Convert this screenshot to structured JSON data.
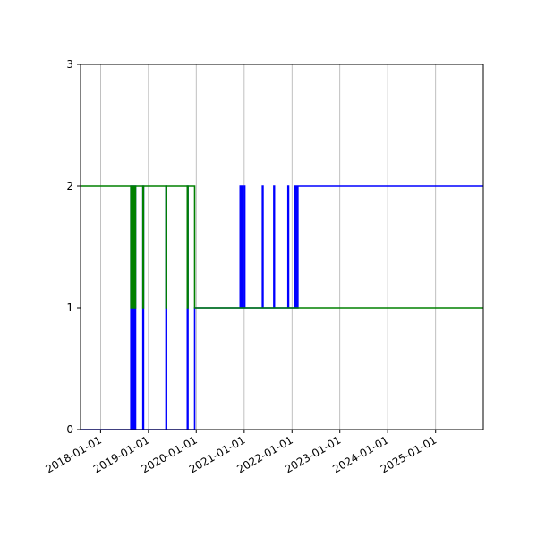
{
  "chart_data": {
    "type": "line",
    "title": "",
    "xlabel": "",
    "ylabel": "",
    "x_axis": {
      "kind": "date",
      "range": [
        "2017-08-01",
        "2025-12-31"
      ],
      "ticks": [
        "2018-01-01",
        "2019-01-01",
        "2020-01-01",
        "2021-01-01",
        "2022-01-01",
        "2023-01-01",
        "2024-01-01",
        "2025-01-01"
      ]
    },
    "y_axis": {
      "range": [
        0,
        3
      ],
      "ticks": [
        0,
        1,
        2,
        3
      ]
    },
    "grid": "x-only",
    "legend": "none",
    "series": [
      {
        "color": "#0000ff",
        "points": [
          [
            "2017-08-01",
            0
          ],
          [
            "2018-08-20",
            0
          ],
          [
            "2018-08-20",
            2
          ],
          [
            "2018-08-25",
            2
          ],
          [
            "2018-08-25",
            0
          ],
          [
            "2018-08-29",
            0
          ],
          [
            "2018-08-29",
            2
          ],
          [
            "2018-09-05",
            2
          ],
          [
            "2018-09-05",
            0
          ],
          [
            "2018-09-10",
            0
          ],
          [
            "2018-09-10",
            2
          ],
          [
            "2018-09-15",
            2
          ],
          [
            "2018-09-15",
            0
          ],
          [
            "2018-09-19",
            0
          ],
          [
            "2018-09-19",
            2
          ],
          [
            "2018-09-25",
            2
          ],
          [
            "2018-09-25",
            0
          ],
          [
            "2018-11-20",
            0
          ],
          [
            "2018-11-20",
            2
          ],
          [
            "2018-11-25",
            2
          ],
          [
            "2018-11-25",
            0
          ],
          [
            "2019-05-15",
            0
          ],
          [
            "2019-05-15",
            2
          ],
          [
            "2019-05-20",
            2
          ],
          [
            "2019-05-20",
            0
          ],
          [
            "2019-10-25",
            0
          ],
          [
            "2019-10-25",
            2
          ],
          [
            "2019-10-30",
            2
          ],
          [
            "2019-10-30",
            0
          ],
          [
            "2019-12-20",
            0
          ],
          [
            "2019-12-20",
            1
          ],
          [
            "2020-12-01",
            1
          ],
          [
            "2020-12-01",
            2
          ],
          [
            "2020-12-06",
            2
          ],
          [
            "2020-12-06",
            1
          ],
          [
            "2020-12-16",
            1
          ],
          [
            "2020-12-16",
            2
          ],
          [
            "2020-12-20",
            2
          ],
          [
            "2020-12-20",
            1
          ],
          [
            "2021-01-01",
            1
          ],
          [
            "2021-01-01",
            2
          ],
          [
            "2021-01-06",
            2
          ],
          [
            "2021-01-06",
            1
          ],
          [
            "2021-05-20",
            1
          ],
          [
            "2021-05-20",
            2
          ],
          [
            "2021-05-25",
            2
          ],
          [
            "2021-05-25",
            1
          ],
          [
            "2021-08-15",
            1
          ],
          [
            "2021-08-15",
            2
          ],
          [
            "2021-08-20",
            2
          ],
          [
            "2021-08-20",
            1
          ],
          [
            "2021-12-01",
            1
          ],
          [
            "2021-12-01",
            2
          ],
          [
            "2021-12-06",
            2
          ],
          [
            "2021-12-06",
            1
          ],
          [
            "2022-01-25",
            1
          ],
          [
            "2022-01-25",
            2
          ],
          [
            "2022-01-30",
            2
          ],
          [
            "2022-01-30",
            1
          ],
          [
            "2022-02-05",
            1
          ],
          [
            "2022-02-05",
            2
          ],
          [
            "2022-02-10",
            2
          ],
          [
            "2022-02-10",
            1
          ],
          [
            "2022-02-15",
            1
          ],
          [
            "2022-02-15",
            2
          ],
          [
            "2025-12-31",
            2
          ]
        ]
      },
      {
        "color": "#008000",
        "points": [
          [
            "2017-08-01",
            2
          ],
          [
            "2018-08-20",
            2
          ],
          [
            "2018-08-20",
            1
          ],
          [
            "2018-08-25",
            1
          ],
          [
            "2018-08-25",
            2
          ],
          [
            "2018-08-29",
            2
          ],
          [
            "2018-08-29",
            1
          ],
          [
            "2018-09-05",
            1
          ],
          [
            "2018-09-05",
            2
          ],
          [
            "2018-09-10",
            2
          ],
          [
            "2018-09-10",
            1
          ],
          [
            "2018-09-15",
            1
          ],
          [
            "2018-09-15",
            2
          ],
          [
            "2018-09-19",
            2
          ],
          [
            "2018-09-19",
            1
          ],
          [
            "2018-09-25",
            1
          ],
          [
            "2018-09-25",
            2
          ],
          [
            "2018-11-20",
            2
          ],
          [
            "2018-11-20",
            1
          ],
          [
            "2018-11-25",
            1
          ],
          [
            "2018-11-25",
            2
          ],
          [
            "2019-05-15",
            2
          ],
          [
            "2019-05-15",
            1
          ],
          [
            "2019-05-20",
            1
          ],
          [
            "2019-05-20",
            2
          ],
          [
            "2019-10-25",
            2
          ],
          [
            "2019-10-25",
            1
          ],
          [
            "2019-10-30",
            1
          ],
          [
            "2019-10-30",
            2
          ],
          [
            "2019-12-20",
            2
          ],
          [
            "2019-12-20",
            1
          ],
          [
            "2025-12-31",
            1
          ]
        ]
      }
    ]
  }
}
